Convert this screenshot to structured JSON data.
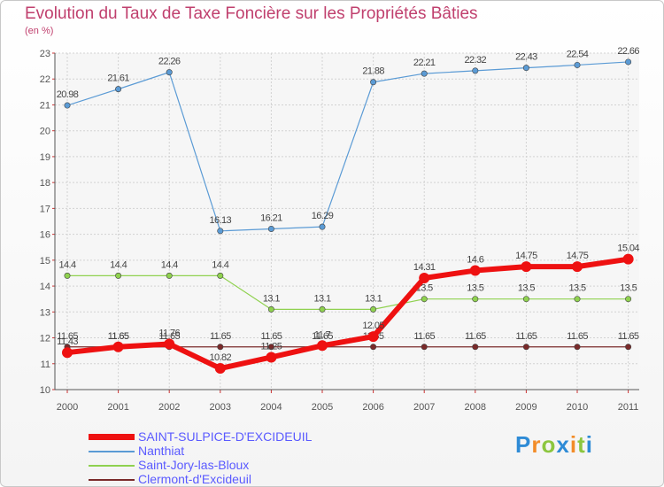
{
  "chart_data": {
    "type": "line",
    "title": "Evolution du Taux de Taxe Foncière sur les Propriétés Bâties",
    "subtitle": "(en %)",
    "xlabel": "",
    "ylabel": "",
    "ylim": [
      10,
      23
    ],
    "yticks": [
      "10",
      "11",
      "12",
      "13",
      "14",
      "15",
      "16",
      "17",
      "18",
      "19",
      "20",
      "21",
      "22",
      "23"
    ],
    "categories": [
      "2000",
      "2001",
      "2002",
      "2003",
      "2004",
      "2005",
      "2006",
      "2007",
      "2008",
      "2009",
      "2010",
      "2011"
    ],
    "series": [
      {
        "name": "Nanthiat",
        "color": "#5b9bd5",
        "values": [
          20.98,
          21.61,
          22.26,
          16.13,
          16.21,
          16.29,
          21.88,
          22.21,
          22.32,
          22.43,
          22.54,
          22.66
        ],
        "labels": [
          "20.98",
          "21.61",
          "22.26",
          "16.13",
          "16.21",
          "16.29",
          "21.88",
          "22.21",
          "22.32",
          "22.43",
          "22.54",
          "22.66"
        ]
      },
      {
        "name": "Saint-Jory-las-Bloux",
        "color": "#8fd14f",
        "values": [
          14.4,
          14.4,
          14.4,
          14.4,
          13.1,
          13.1,
          13.1,
          13.5,
          13.5,
          13.5,
          13.5,
          13.5
        ],
        "labels": [
          "14.4",
          "14.4",
          "14.4",
          "14.4",
          "13.1",
          "13.1",
          "13.1",
          "13.5",
          "13.5",
          "13.5",
          "13.5",
          "13.5"
        ]
      },
      {
        "name": "Clermont-d'Excideuil",
        "color": "#7a2a2a",
        "values": [
          11.65,
          11.65,
          11.65,
          11.65,
          11.65,
          11.65,
          11.65,
          11.65,
          11.65,
          11.65,
          11.65,
          11.65
        ],
        "labels": [
          "11.65",
          "11.65",
          "11.65",
          "11.65",
          "11.65",
          "11.65",
          "11.65",
          "11.65",
          "11.65",
          "11.65",
          "11.65",
          "11.65"
        ]
      },
      {
        "name": "SAINT-SULPICE-D'EXCIDEUIL",
        "color": "#ee1111",
        "values": [
          11.43,
          11.65,
          11.76,
          10.82,
          11.25,
          11.7,
          12.05,
          14.31,
          14.6,
          14.75,
          14.75,
          15.04
        ],
        "labels": [
          "11.43",
          "11.65",
          "11.76",
          "10.82",
          "11.25",
          "11.7",
          "12.05",
          "14.31",
          "14.6",
          "14.75",
          "14.75",
          "15.04"
        ]
      }
    ]
  },
  "legend": [
    {
      "name": "SAINT-SULPICE-D'EXCIDEUIL",
      "color": "#ee1111",
      "thick": true
    },
    {
      "name": "Nanthiat",
      "color": "#5b9bd5",
      "thick": false
    },
    {
      "name": "Saint-Jory-las-Bloux",
      "color": "#8fd14f",
      "thick": false
    },
    {
      "name": "Clermont-d'Excideuil",
      "color": "#7a2a2a",
      "thick": false
    }
  ],
  "brand": {
    "letters": [
      "P",
      "r",
      "o",
      "x",
      "i",
      "t",
      "i"
    ],
    "colors": [
      "#2e8bd6",
      "#f28c28",
      "#8cc63f",
      "#2e8bd6",
      "#f28c28",
      "#8cc63f",
      "#2e8bd6"
    ]
  }
}
